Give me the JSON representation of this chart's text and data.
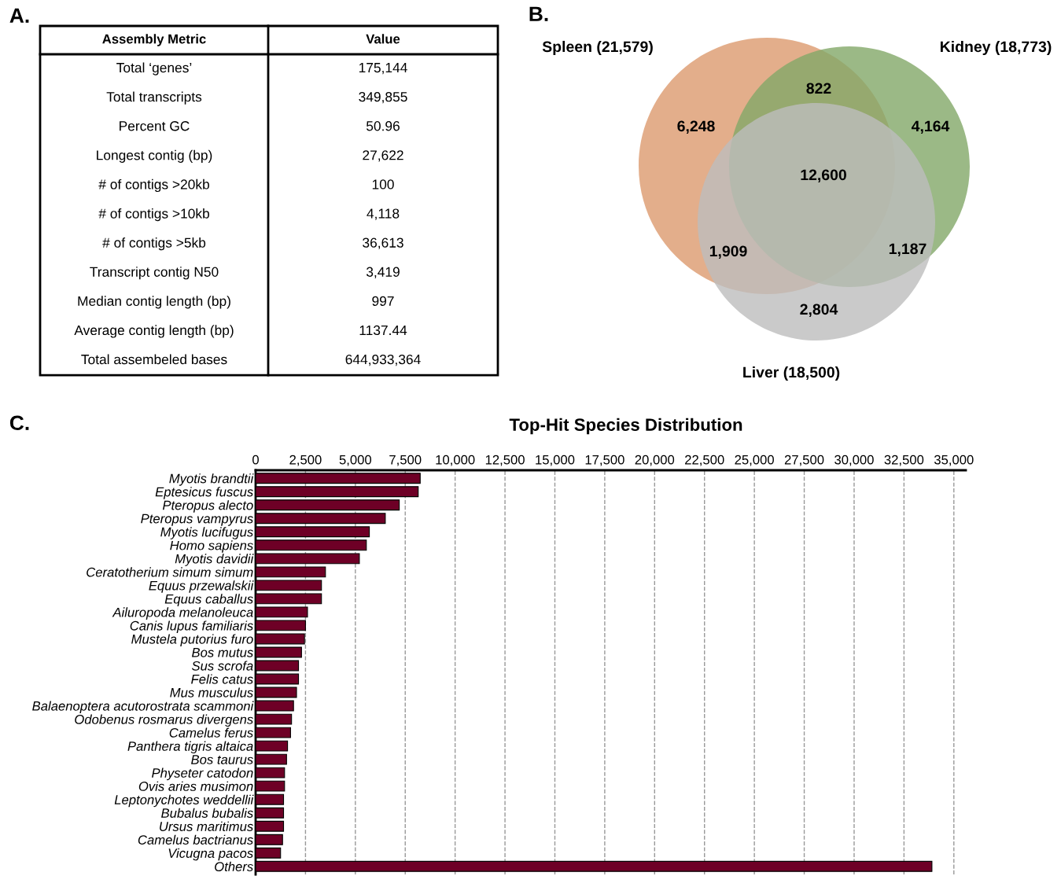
{
  "chart_data": [
    {
      "type": "other",
      "annotations": [
        "A."
      ],
      "categories": [
        "Assembly Metric",
        "Value"
      ],
      "cell_labels": [
        [
          "Total ‘genes’",
          "175,144"
        ],
        [
          "Total transcripts",
          "349,855"
        ],
        [
          "Percent GC",
          "50.96"
        ],
        [
          "Longest contig (bp)",
          "27,622"
        ],
        [
          "# of contigs >20kb",
          "100"
        ],
        [
          "# of contigs >10kb",
          "4,118"
        ],
        [
          "# of contigs >5kb",
          "36,613"
        ],
        [
          "Transcript contig N50",
          "3,419"
        ],
        [
          "Median contig length (bp)",
          "997"
        ],
        [
          "Average contig length (bp)",
          "1137.44"
        ],
        [
          "Total assembeled bases",
          "644,933,364"
        ]
      ]
    },
    {
      "type": "other",
      "annotations": [
        "B.",
        "6,248",
        "822",
        "4,164",
        "12,600",
        "1,909",
        "1,187",
        "2,804"
      ],
      "categories": [
        "Spleen (21,579)",
        "Kidney (18,773)",
        "Liver (18,500)"
      ],
      "colors": [
        "#dc9a6e",
        "#82a868",
        "#bdbdbd"
      ]
    },
    {
      "type": "bar",
      "orientation": "horizontal",
      "title": "Top-Hit Species Distribution",
      "annotations": [
        "C."
      ],
      "categories": [
        "Myotis brandtii",
        "Eptesicus fuscus",
        "Pteropus alecto",
        "Pteropus vampyrus",
        "Myotis lucifugus",
        "Homo sapiens",
        "Myotis davidii",
        "Ceratotherium simum simum",
        "Equus przewalskii",
        "Equus caballus",
        "Ailuropoda melanoleuca",
        "Canis lupus familiaris",
        "Mustela putorius furo",
        "Bos mutus",
        "Sus scrofa",
        "Felis catus",
        "Mus musculus",
        "Balaenoptera acutorostrata scammoni",
        "Odobenus rosmarus divergens",
        "Camelus ferus",
        "Panthera tigris altaica",
        "Bos taurus",
        "Physeter catodon",
        "Ovis aries musimon",
        "Leptonychotes weddellii",
        "Bubalus bubalis",
        "Ursus maritimus",
        "Camelus bactrianus",
        "Vicugna pacos",
        "Others"
      ],
      "values": [
        8250,
        8150,
        7200,
        6500,
        5700,
        5550,
        5200,
        3500,
        3300,
        3300,
        2600,
        2500,
        2450,
        2300,
        2150,
        2150,
        2050,
        1900,
        1800,
        1750,
        1600,
        1550,
        1450,
        1450,
        1400,
        1400,
        1400,
        1350,
        1250,
        33900
      ],
      "color": "#6e0026",
      "xlim": [
        0,
        35600
      ],
      "xticks": [
        {
          "value": 0,
          "label": "0"
        },
        {
          "value": 2500,
          "label": "2,500"
        },
        {
          "value": 5000,
          "label": "5,000"
        },
        {
          "value": 7500,
          "label": "7,500"
        },
        {
          "value": 10000,
          "label": "10,000"
        },
        {
          "value": 12500,
          "label": "12,500"
        },
        {
          "value": 15000,
          "label": "15,000"
        },
        {
          "value": 17500,
          "label": "17,500"
        },
        {
          "value": 20000,
          "label": "20,000"
        },
        {
          "value": 22500,
          "label": "22,500"
        },
        {
          "value": 25000,
          "label": "25,000"
        },
        {
          "value": 27500,
          "label": "27,500"
        },
        {
          "value": 30000,
          "label": "30,000"
        },
        {
          "value": 32500,
          "label": "32,500"
        },
        {
          "value": 35000,
          "label": "35,000"
        }
      ],
      "grid": "x",
      "line_style": "dashed"
    }
  ]
}
